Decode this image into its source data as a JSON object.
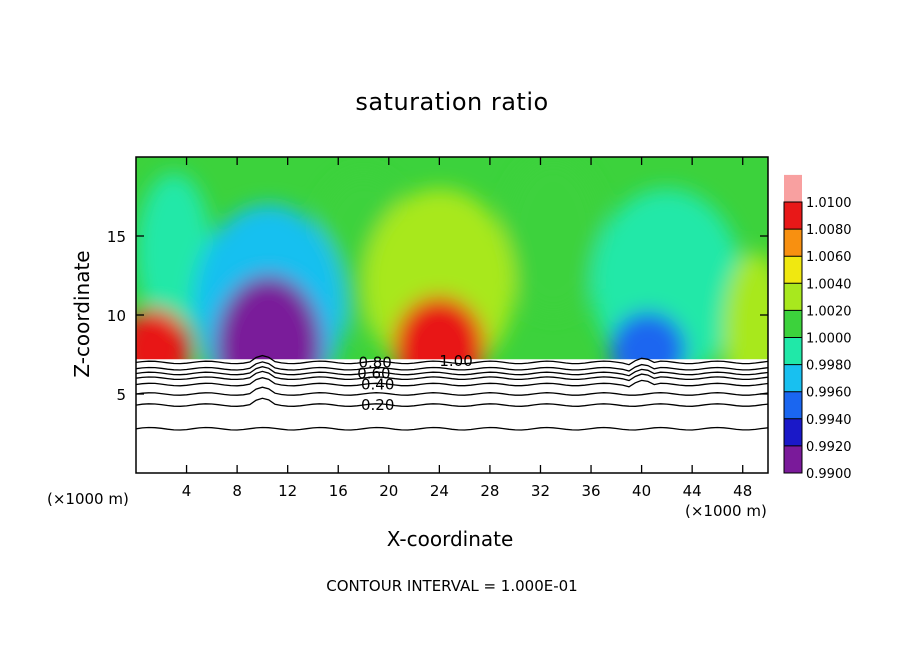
{
  "chart_data": {
    "type": "heatmap",
    "title": "saturation ratio",
    "xlabel": "X-coordinate",
    "ylabel": "Z-coordinate",
    "x_unit_note": "(×1000 m)",
    "y_unit_note": "(×1000 m)",
    "footer": "CONTOUR INTERVAL = 1.000E-01",
    "xlim": [
      0,
      50
    ],
    "ylim": [
      0,
      20
    ],
    "x_ticks": [
      4,
      8,
      12,
      16,
      20,
      24,
      28,
      32,
      36,
      40,
      44,
      48
    ],
    "y_ticks": [
      5,
      10,
      15
    ],
    "colorbar": {
      "levels": [
        0.99,
        0.992,
        0.994,
        0.996,
        0.998,
        1.0,
        1.002,
        1.004,
        1.006,
        1.008,
        1.01
      ],
      "labels": [
        "0.9900",
        "0.9920",
        "0.9940",
        "0.9960",
        "0.9980",
        "1.0000",
        "1.0020",
        "1.0040",
        "1.0060",
        "1.0080",
        "1.0100"
      ],
      "colors": [
        "#7a1a9a",
        "#1a18c8",
        "#1a66f0",
        "#18c0f0",
        "#20e8a8",
        "#3cd23c",
        "#a8e81e",
        "#f0e810",
        "#f89010",
        "#e81818",
        "#f8a0a0"
      ]
    },
    "contour_labels": [
      {
        "text": "0.20",
        "x": 17.8,
        "z": 4.3
      },
      {
        "text": "0.40",
        "x": 17.8,
        "z": 5.6
      },
      {
        "text": "0.60",
        "x": 17.5,
        "z": 6.3
      },
      {
        "text": "0.80",
        "x": 17.6,
        "z": 7.0
      },
      {
        "text": "1.00",
        "x": 24.0,
        "z": 7.1
      }
    ],
    "contour_lines_z": [
      2.8,
      4.3,
      5.0,
      5.6,
      6.0,
      6.3,
      6.6,
      7.0
    ],
    "anomalies": [
      {
        "x": 1.5,
        "z": 7.8,
        "value": 1.0085,
        "rx": 2.8,
        "rz": 2.6
      },
      {
        "x": 10.5,
        "z": 8.0,
        "value": 0.9915,
        "rx": 4.2,
        "rz": 4.5
      },
      {
        "x": 10.5,
        "z": 10.5,
        "value": 0.9965,
        "rx": 6.0,
        "rz": 6.5
      },
      {
        "x": 24.0,
        "z": 8.0,
        "value": 1.0085,
        "rx": 3.6,
        "rz": 3.2
      },
      {
        "x": 24.0,
        "z": 12.0,
        "value": 1.0025,
        "rx": 6.0,
        "rz": 6.0
      },
      {
        "x": 40.5,
        "z": 7.8,
        "value": 0.9955,
        "rx": 3.0,
        "rz": 2.4
      },
      {
        "x": 42.0,
        "z": 12.0,
        "value": 0.9985,
        "rx": 6.0,
        "rz": 6.0
      },
      {
        "x": 49.0,
        "z": 9.0,
        "value": 1.0035,
        "rx": 2.5,
        "rz": 5.0
      },
      {
        "x": 18.0,
        "z": 14.0,
        "value": 1.0012,
        "rx": 4.0,
        "rz": 5.0
      },
      {
        "x": 33.0,
        "z": 15.0,
        "value": 1.0012,
        "rx": 4.0,
        "rz": 5.0
      },
      {
        "x": 3.0,
        "z": 14.0,
        "value": 0.9995,
        "rx": 3.0,
        "rz": 5.0
      }
    ]
  }
}
